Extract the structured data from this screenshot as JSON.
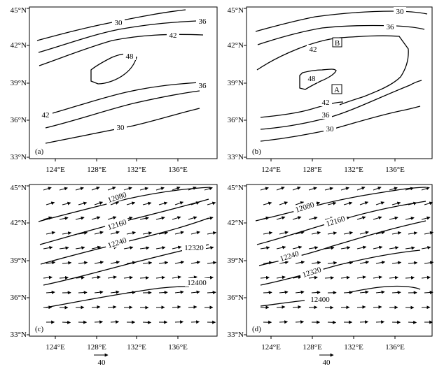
{
  "panels": [
    {
      "label": "(a)",
      "kind": "scalar",
      "contour_labels": [
        "30",
        "36",
        "42",
        "48",
        "36",
        "42",
        "30"
      ]
    },
    {
      "label": "(b)",
      "kind": "scalar",
      "contour_labels": [
        "30",
        "36",
        "42",
        "48",
        "42",
        "36",
        "30"
      ],
      "markers": [
        "B",
        "A"
      ]
    },
    {
      "label": "(c)",
      "kind": "wind",
      "contour_labels": [
        "12080",
        "12160",
        "12240",
        "12320",
        "12400"
      ]
    },
    {
      "label": "(d)",
      "kind": "wind",
      "contour_labels": [
        "12080",
        "12160",
        "12240",
        "12320",
        "12400"
      ]
    }
  ],
  "axes": {
    "x_ticks": [
      "124°E",
      "128°E",
      "132°E",
      "136°E"
    ],
    "y_ticks": [
      "45°N",
      "42°N",
      "39°N",
      "36°N",
      "33°N"
    ]
  },
  "reference_vector": "40"
}
